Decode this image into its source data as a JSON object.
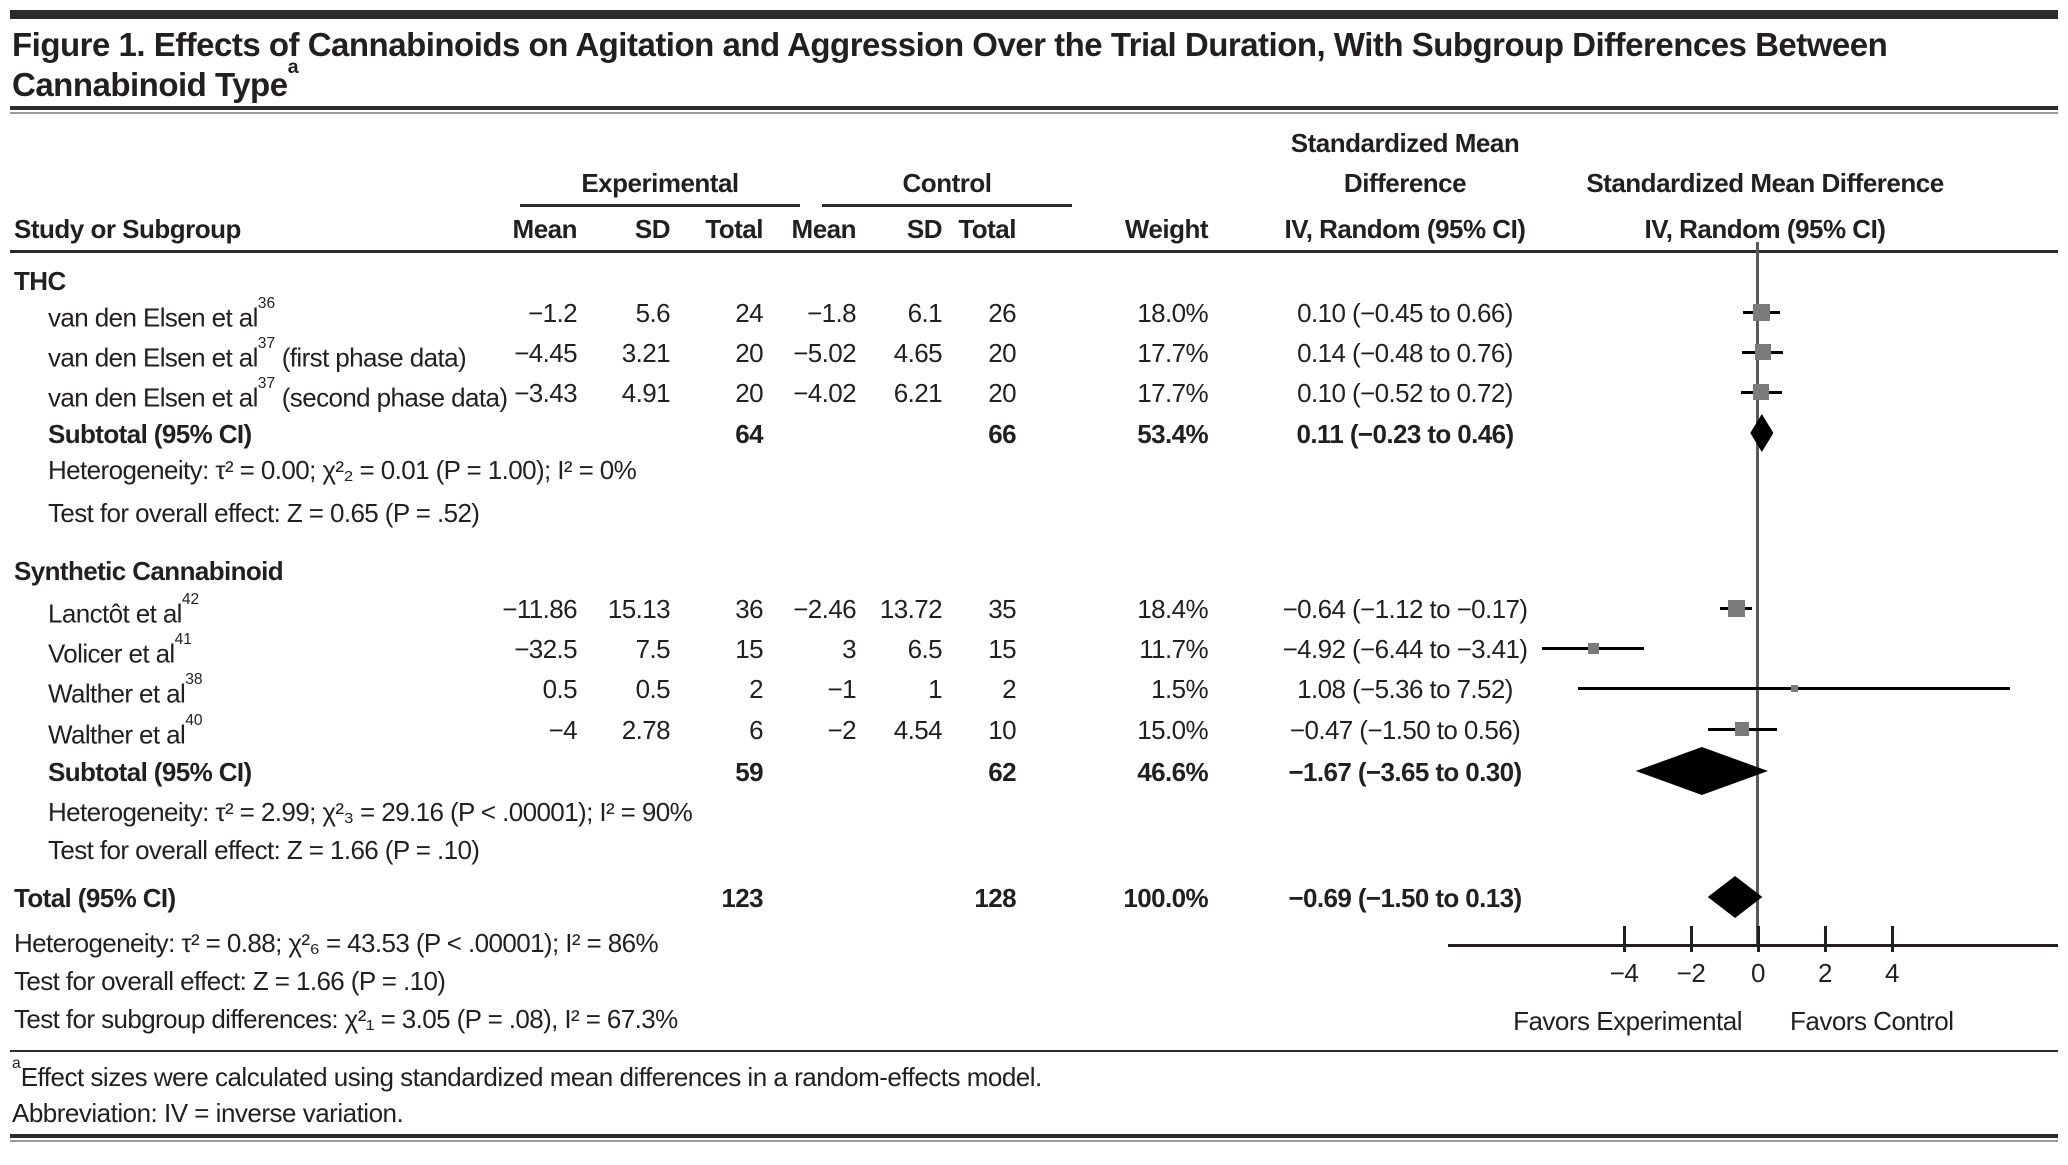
{
  "title": {
    "line1": "Figure 1. Effects of Cannabinoids on Agitation and Aggression Over the Trial Duration, With Subgroup Differences Between",
    "line2": "Cannabinoid Type",
    "sup": "a"
  },
  "columns": {
    "study_or_subgroup": "Study or Subgroup",
    "experimental": "Experimental",
    "control": "Control",
    "mean": "Mean",
    "sd": "SD",
    "total": "Total",
    "weight": "Weight",
    "smd_line1": "Standardized Mean",
    "smd_line2": "Difference",
    "iv_random": "IV, Random (95% CI)",
    "plot_smd": "Standardized Mean Difference",
    "plot_iv": "IV, Random (95% CI)"
  },
  "groups": [
    {
      "name": "THC",
      "rows": [
        {
          "name": "van den Elsen et al",
          "ref": "36",
          "suffix": "",
          "exp_mean": "−1.2",
          "exp_sd": "5.6",
          "exp_total": "24",
          "ctl_mean": "−1.8",
          "ctl_sd": "6.1",
          "ctl_total": "26",
          "weight": "18.0%",
          "smd": "0.10 (−0.45 to 0.66)"
        },
        {
          "name": "van den Elsen et al",
          "ref": "37",
          "suffix": " (first phase data)",
          "exp_mean": "−4.45",
          "exp_sd": "3.21",
          "exp_total": "20",
          "ctl_mean": "−5.02",
          "ctl_sd": "4.65",
          "ctl_total": "20",
          "weight": "17.7%",
          "smd": "0.14 (−0.48 to 0.76)"
        },
        {
          "name": "van den Elsen et al",
          "ref": "37",
          "suffix": " (second phase data)",
          "exp_mean": "−3.43",
          "exp_sd": "4.91",
          "exp_total": "20",
          "ctl_mean": "−4.02",
          "ctl_sd": "6.21",
          "ctl_total": "20",
          "weight": "17.7%",
          "smd": "0.10 (−0.52 to 0.72)"
        }
      ],
      "subtotal": {
        "label": "Subtotal (95% CI)",
        "exp_total": "64",
        "ctl_total": "66",
        "weight": "53.4%",
        "smd": "0.11 (−0.23 to 0.46)"
      },
      "heterogeneity": "Heterogeneity: τ² = 0.00; χ²₂ = 0.01 (P = 1.00); I² = 0%",
      "overall_effect": "Test for overall effect: Z = 0.65 (P = .52)"
    },
    {
      "name": "Synthetic Cannabinoid",
      "rows": [
        {
          "name": "Lanctôt et al",
          "ref": "42",
          "suffix": "",
          "exp_mean": "−11.86",
          "exp_sd": "15.13",
          "exp_total": "36",
          "ctl_mean": "−2.46",
          "ctl_sd": "13.72",
          "ctl_total": "35",
          "weight": "18.4%",
          "smd": "−0.64 (−1.12 to −0.17)"
        },
        {
          "name": "Volicer et al",
          "ref": "41",
          "suffix": "",
          "exp_mean": "−32.5",
          "exp_sd": "7.5",
          "exp_total": "15",
          "ctl_mean": "3",
          "ctl_sd": "6.5",
          "ctl_total": "15",
          "weight": "11.7%",
          "smd": "−4.92 (−6.44 to −3.41)"
        },
        {
          "name": "Walther et al",
          "ref": "38",
          "suffix": "",
          "exp_mean": "0.5",
          "exp_sd": "0.5",
          "exp_total": "2",
          "ctl_mean": "−1",
          "ctl_sd": "1",
          "ctl_total": "2",
          "weight": "1.5%",
          "smd": "1.08 (−5.36 to 7.52)"
        },
        {
          "name": "Walther et al",
          "ref": "40",
          "suffix": "",
          "exp_mean": "−4",
          "exp_sd": "2.78",
          "exp_total": "6",
          "ctl_mean": "−2",
          "ctl_sd": "4.54",
          "ctl_total": "10",
          "weight": "15.0%",
          "smd": "−0.47 (−1.50 to 0.56)"
        }
      ],
      "subtotal": {
        "label": "Subtotal (95% CI)",
        "exp_total": "59",
        "ctl_total": "62",
        "weight": "46.6%",
        "smd": "−1.67 (−3.65 to 0.30)"
      },
      "heterogeneity": "Heterogeneity: τ² = 2.99; χ²₃ = 29.16 (P < .00001); I² = 90%",
      "overall_effect": "Test for overall effect: Z = 1.66 (P = .10)"
    }
  ],
  "total_row": {
    "label": "Total (95% CI)",
    "exp_total": "123",
    "ctl_total": "128",
    "weight": "100.0%",
    "smd": "−0.69 (−1.50 to 0.13)"
  },
  "overall_stats": [
    "Heterogeneity: τ² = 0.88; χ²₆ = 43.53 (P < .00001); I² = 86%",
    "Test for overall effect: Z = 1.66 (P = .10)",
    "Test for subgroup differences: χ²₁ = 3.05 (P = .08), I² = 67.3%"
  ],
  "plot": {
    "tick_labels": [
      "−4",
      "−2",
      "0",
      "2",
      "4"
    ],
    "favors_left": "Favors Experimental",
    "favors_right": "Favors Control"
  },
  "footnotes": {
    "sup": "a",
    "text": "Effect sizes were calculated using standardized mean differences in a random-effects model.",
    "abbreviation": "Abbreviation: IV = inverse variation."
  },
  "colors": {
    "square": "#7b7b7b",
    "diamond": "#000000",
    "ci_line": "#000000",
    "zero_line": "#58595b",
    "text": "#231f20"
  },
  "chart_data": {
    "type": "scatter",
    "subtype": "forest-plot",
    "title": "Standardized Mean Difference IV, Random (95% CI)",
    "xlabel_left": "Favors Experimental",
    "xlabel_right": "Favors Control",
    "ticks": [
      -4,
      -2,
      0,
      2,
      4
    ],
    "xlim": [
      -6.44,
      7.52
    ],
    "points": [
      {
        "label": "van den Elsen et al 36",
        "group": "THC",
        "est": 0.1,
        "lo": -0.45,
        "hi": 0.66,
        "weight_pct": 18.0
      },
      {
        "label": "van den Elsen et al 37 (first phase data)",
        "group": "THC",
        "est": 0.14,
        "lo": -0.48,
        "hi": 0.76,
        "weight_pct": 17.7
      },
      {
        "label": "van den Elsen et al 37 (second phase data)",
        "group": "THC",
        "est": 0.1,
        "lo": -0.52,
        "hi": 0.72,
        "weight_pct": 17.7
      },
      {
        "label": "Lanctôt et al 42",
        "group": "Synthetic Cannabinoid",
        "est": -0.64,
        "lo": -1.12,
        "hi": -0.17,
        "weight_pct": 18.4
      },
      {
        "label": "Volicer et al 41",
        "group": "Synthetic Cannabinoid",
        "est": -4.92,
        "lo": -6.44,
        "hi": -3.41,
        "weight_pct": 11.7
      },
      {
        "label": "Walther et al 38",
        "group": "Synthetic Cannabinoid",
        "est": 1.08,
        "lo": -5.36,
        "hi": 7.52,
        "weight_pct": 1.5
      },
      {
        "label": "Walther et al 40",
        "group": "Synthetic Cannabinoid",
        "est": -0.47,
        "lo": -1.5,
        "hi": 0.56,
        "weight_pct": 15.0
      }
    ],
    "diamonds": [
      {
        "label": "THC Subtotal (95% CI)",
        "est": 0.11,
        "lo": -0.23,
        "hi": 0.46
      },
      {
        "label": "Synthetic Cannabinoid Subtotal (95% CI)",
        "est": -1.67,
        "lo": -3.65,
        "hi": 0.3
      },
      {
        "label": "Total (95% CI)",
        "est": -0.69,
        "lo": -1.5,
        "hi": 0.13
      }
    ]
  }
}
